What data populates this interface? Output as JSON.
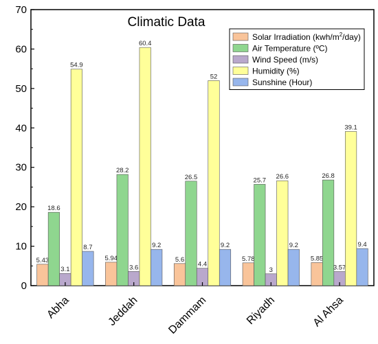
{
  "chart_data": {
    "type": "bar",
    "title": "Climatic Data",
    "xlabel": "",
    "ylabel": "",
    "ylim": [
      0,
      70
    ],
    "yticks": [
      0,
      10,
      20,
      30,
      40,
      50,
      60,
      70
    ],
    "grid": false,
    "legend_position": "top-right",
    "categories": [
      "Abha",
      "Jeddah",
      "Dammam",
      "Riyadh",
      "Al Ahsa"
    ],
    "series": [
      {
        "name": "Solar Irradiation (kwh/m²/day)",
        "legend_main": "Solar Irradiation (kwh/m",
        "legend_sup": "2",
        "legend_tail": "/day)",
        "color": "#f9c49a",
        "values": [
          5.43,
          5.94,
          5.6,
          5.78,
          5.85
        ],
        "labels": [
          "5.43",
          "5.94",
          "5.6",
          "5.78",
          "5.85"
        ]
      },
      {
        "name": "Air Temperature (ºC)",
        "color": "#8fd68f",
        "values": [
          18.6,
          28.2,
          26.5,
          25.7,
          26.8
        ],
        "labels": [
          "18.6",
          "28.2",
          "26.5",
          "25.7",
          "26.8"
        ]
      },
      {
        "name": "Wind Speed (m/s)",
        "color": "#b9a8cc",
        "values": [
          3.1,
          3.6,
          4.4,
          3,
          3.57
        ],
        "labels": [
          "3.1",
          "3.6",
          "4.4",
          "3",
          "3.57"
        ]
      },
      {
        "name": "Humidity (%)",
        "color": "#ffff99",
        "values": [
          54.9,
          60.4,
          52,
          26.6,
          39.1
        ],
        "labels": [
          "54.9",
          "60.4",
          "52",
          "26.6",
          "39.1"
        ]
      },
      {
        "name": "Sunshine (Hour)",
        "color": "#97b6ec",
        "values": [
          8.7,
          9.2,
          9.2,
          9.2,
          9.4
        ],
        "labels": [
          "8.7",
          "9.2",
          "9.2",
          "9.2",
          "9.4"
        ]
      }
    ]
  }
}
